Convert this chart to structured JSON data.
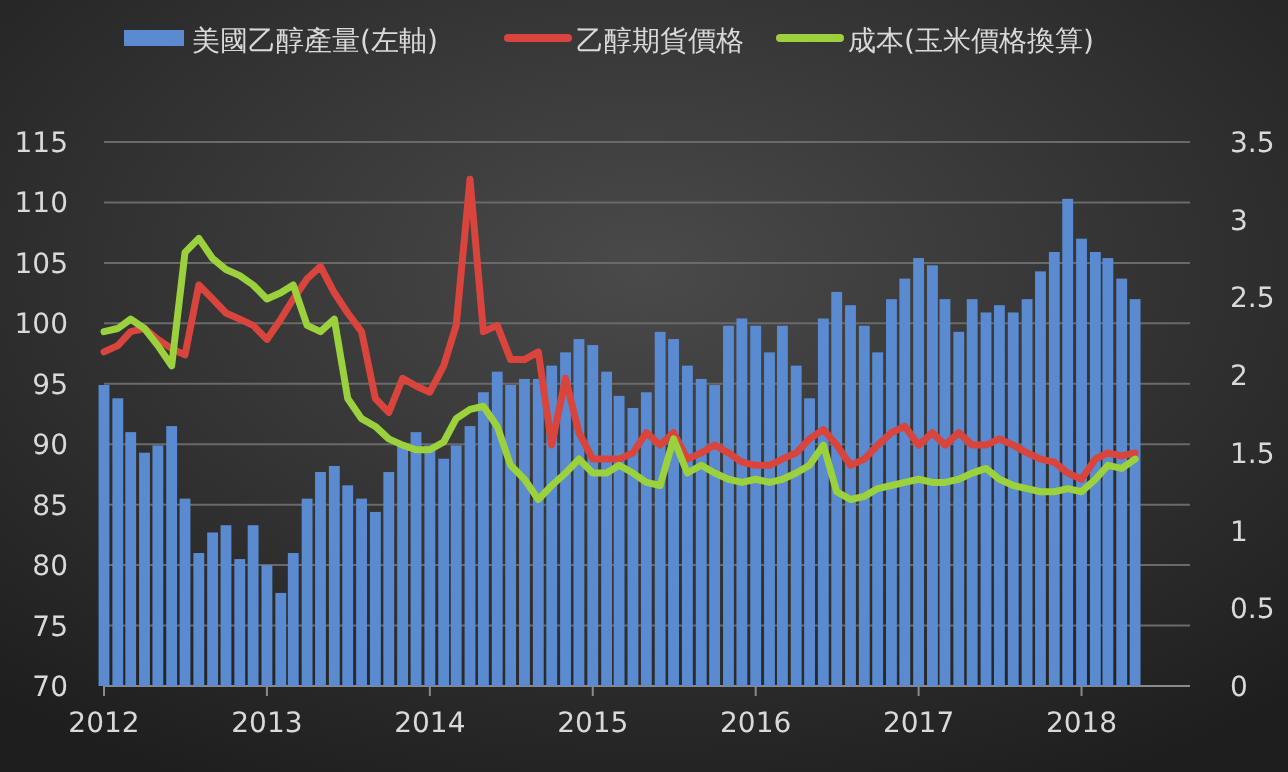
{
  "chart_data": {
    "type": "bar",
    "legend": "top",
    "grid": "y",
    "x": [
      "2012-01",
      "2012-02",
      "2012-03",
      "2012-04",
      "2012-05",
      "2012-06",
      "2012-07",
      "2012-08",
      "2012-09",
      "2012-10",
      "2012-11",
      "2012-12",
      "2013-01",
      "2013-02",
      "2013-03",
      "2013-04",
      "2013-05",
      "2013-06",
      "2013-07",
      "2013-08",
      "2013-09",
      "2013-10",
      "2013-11",
      "2013-12",
      "2014-01",
      "2014-02",
      "2014-03",
      "2014-04",
      "2014-05",
      "2014-06",
      "2014-07",
      "2014-08",
      "2014-09",
      "2014-10",
      "2014-11",
      "2014-12",
      "2015-01",
      "2015-02",
      "2015-03",
      "2015-04",
      "2015-05",
      "2015-06",
      "2015-07",
      "2015-08",
      "2015-09",
      "2015-10",
      "2015-11",
      "2015-12",
      "2016-01",
      "2016-02",
      "2016-03",
      "2016-04",
      "2016-05",
      "2016-06",
      "2016-07",
      "2016-08",
      "2016-09",
      "2016-10",
      "2016-11",
      "2016-12",
      "2017-01",
      "2017-02",
      "2017-03",
      "2017-04",
      "2017-05",
      "2017-06",
      "2017-07",
      "2017-08",
      "2017-09",
      "2017-10",
      "2017-11",
      "2017-12",
      "2018-01",
      "2018-02",
      "2018-03",
      "2018-04",
      "2018-05"
    ],
    "xlim": [
      "2012-01-01",
      "2018-09-01"
    ],
    "xticks": [
      "2012",
      "2013",
      "2014",
      "2015",
      "2016",
      "2017",
      "2018"
    ],
    "ylim": [
      70,
      115
    ],
    "yticks": [
      70,
      75,
      80,
      85,
      90,
      95,
      100,
      105,
      110,
      115
    ],
    "y2lim": [
      0,
      3.5
    ],
    "y2ticks": [
      0,
      0.5,
      1,
      1.5,
      2,
      2.5,
      3,
      3.5
    ],
    "series": [
      {
        "name": "美國乙醇產量(左軸)",
        "color": "#5a8ad0",
        "values": [
          94.9,
          93.8,
          91,
          89.3,
          89.9,
          91.5,
          85.5,
          81,
          82.7,
          83.3,
          80.5,
          83.3,
          80,
          77.7,
          81,
          85.5,
          87.7,
          88.2,
          86.6,
          85.5,
          84.4,
          87.7,
          89.9,
          91,
          89.9,
          88.8,
          89.9,
          91.5,
          94.3,
          96,
          94.9,
          95.4,
          95.4,
          96.5,
          97.6,
          98.7,
          98.2,
          96,
          94,
          93,
          94.3,
          99.3,
          98.7,
          96.5,
          95.4,
          94.9,
          99.8,
          100.4,
          99.8,
          97.6,
          99.8,
          96.5,
          93.8,
          100.4,
          102.6,
          101.5,
          99.8,
          97.6,
          102,
          103.7,
          105.4,
          104.8,
          102,
          99.3,
          102,
          100.9,
          101.5,
          100.9,
          102,
          104.3,
          105.9,
          110.3,
          107,
          105.9,
          105.4,
          103.7,
          102
        ]
      },
      {
        "name": "乙醇期貨價格",
        "type": "line",
        "axis": "y2",
        "color": "#d9453c",
        "values": [
          2.15,
          2.19,
          2.28,
          2.3,
          2.23,
          2.17,
          2.13,
          2.58,
          2.49,
          2.4,
          2.36,
          2.32,
          2.23,
          2.36,
          2.49,
          2.62,
          2.7,
          2.53,
          2.4,
          2.28,
          1.85,
          1.76,
          1.98,
          1.93,
          1.89,
          2.06,
          2.32,
          3.26,
          2.28,
          2.32,
          2.1,
          2.1,
          2.15,
          1.55,
          1.98,
          1.63,
          1.46,
          1.46,
          1.46,
          1.5,
          1.63,
          1.55,
          1.63,
          1.46,
          1.5,
          1.55,
          1.5,
          1.44,
          1.42,
          1.42,
          1.46,
          1.5,
          1.59,
          1.65,
          1.55,
          1.42,
          1.46,
          1.55,
          1.63,
          1.67,
          1.55,
          1.63,
          1.55,
          1.63,
          1.55,
          1.55,
          1.59,
          1.55,
          1.5,
          1.46,
          1.44,
          1.37,
          1.33,
          1.46,
          1.5,
          1.48,
          1.5
        ]
      },
      {
        "name": "成本(玉米價格換算)",
        "type": "line",
        "axis": "y2",
        "color": "#9bd13c",
        "values": [
          2.28,
          2.3,
          2.36,
          2.3,
          2.19,
          2.06,
          2.79,
          2.88,
          2.75,
          2.68,
          2.64,
          2.58,
          2.49,
          2.53,
          2.58,
          2.32,
          2.28,
          2.36,
          1.85,
          1.72,
          1.67,
          1.59,
          1.55,
          1.52,
          1.52,
          1.57,
          1.72,
          1.78,
          1.8,
          1.67,
          1.42,
          1.33,
          1.2,
          1.29,
          1.37,
          1.46,
          1.37,
          1.37,
          1.42,
          1.37,
          1.31,
          1.29,
          1.59,
          1.37,
          1.42,
          1.37,
          1.33,
          1.31,
          1.33,
          1.31,
          1.33,
          1.37,
          1.42,
          1.55,
          1.25,
          1.2,
          1.22,
          1.27,
          1.29,
          1.31,
          1.33,
          1.31,
          1.31,
          1.33,
          1.37,
          1.4,
          1.33,
          1.29,
          1.27,
          1.25,
          1.25,
          1.27,
          1.25,
          1.33,
          1.42,
          1.4,
          1.46
        ]
      }
    ]
  }
}
